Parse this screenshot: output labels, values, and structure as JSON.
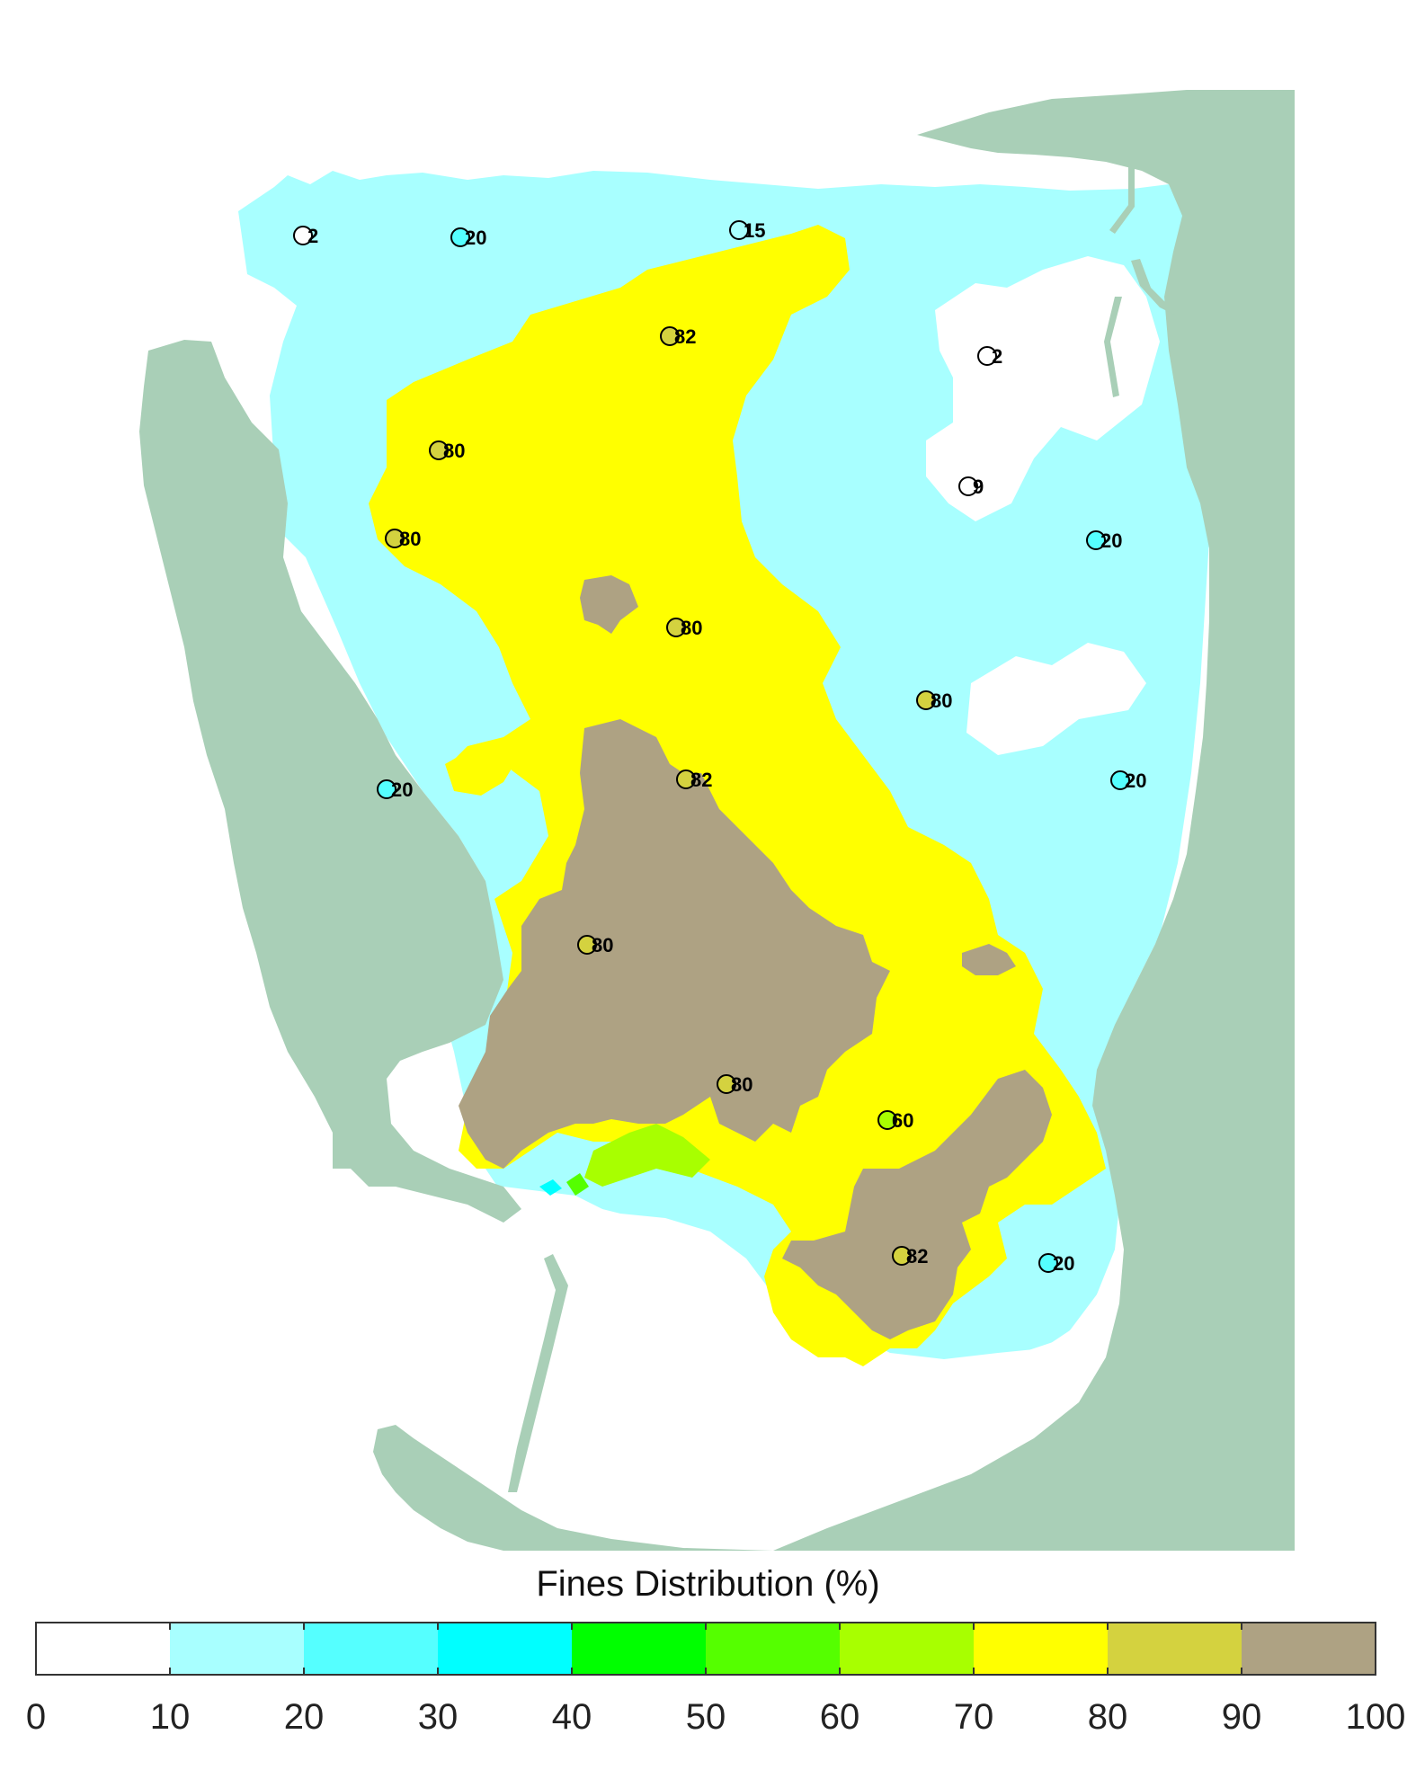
{
  "colors": {
    "land": "#a9cfb7",
    "bin_0_10": "#ffffff",
    "bin_10_20": "#a8ffff",
    "bin_20_30": "#55ffff",
    "bin_30_40": "#00ffff",
    "bin_40_50": "#00ff00",
    "bin_50_60": "#55ff00",
    "bin_60_70": "#a8ff00",
    "bin_70_80": "#ffff00",
    "bin_80_90": "#d4d23f",
    "bin_90_100": "#aea283"
  },
  "stations": [
    {
      "label": "2",
      "value": 2
    },
    {
      "label": "20",
      "value": 20
    },
    {
      "label": "15",
      "value": 15
    },
    {
      "label": "82",
      "value": 82
    },
    {
      "label": "2",
      "value": 2
    },
    {
      "label": "80",
      "value": 80
    },
    {
      "label": "9",
      "value": 9
    },
    {
      "label": "80",
      "value": 80
    },
    {
      "label": "20",
      "value": 20
    },
    {
      "label": "80",
      "value": 80
    },
    {
      "label": "80",
      "value": 80
    },
    {
      "label": "20",
      "value": 20
    },
    {
      "label": "82",
      "value": 82
    },
    {
      "label": "20",
      "value": 20
    },
    {
      "label": "80",
      "value": 80
    },
    {
      "label": "80",
      "value": 80
    },
    {
      "label": "60",
      "value": 60
    },
    {
      "label": "82",
      "value": 82
    },
    {
      "label": "20",
      "value": 20
    }
  ],
  "colorbar": {
    "title": "Fines Distribution (%)",
    "ticks": [
      "0",
      "10",
      "20",
      "30",
      "40",
      "50",
      "60",
      "70",
      "80",
      "90",
      "100"
    ]
  }
}
